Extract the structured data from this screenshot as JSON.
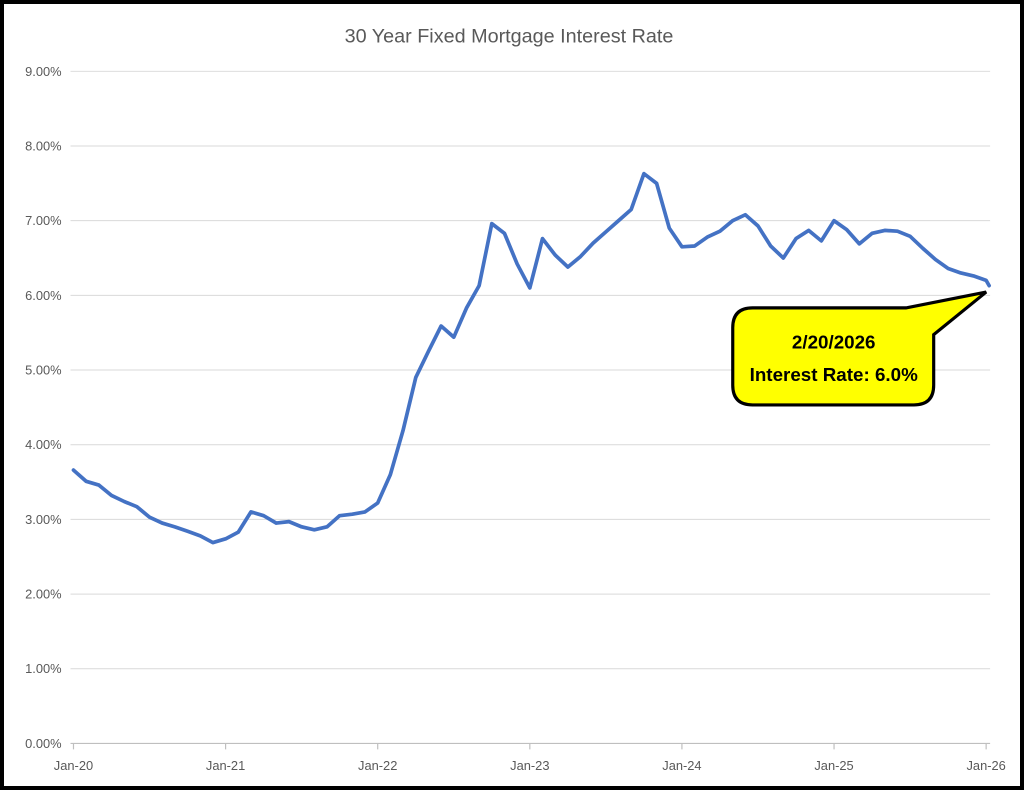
{
  "page": {
    "background": "#ffffff",
    "border_color": "#000000"
  },
  "chart_data": {
    "type": "line",
    "title": "30 Year Fixed Mortgage Interest Rate",
    "x_tick_labels": [
      "Jan-20",
      "Jan-21",
      "Jan-22",
      "Jan-23",
      "Jan-24",
      "Jan-25",
      "Jan-26"
    ],
    "y_tick_labels": [
      "0.00%",
      "1.00%",
      "2.00%",
      "3.00%",
      "4.00%",
      "5.00%",
      "6.00%",
      "7.00%",
      "8.00%",
      "9.00%"
    ],
    "ylim": [
      0,
      9
    ],
    "grid": "horizontal",
    "legend": false,
    "line_color": "#4472C4",
    "gridline_color": "#D9D9D9",
    "axis_color": "#BFBFBF",
    "label_color": "#595959",
    "series": [
      {
        "name": "30 Year Fixed Mortgage Interest Rate",
        "start": "Jan-2020",
        "end": "Feb-2026",
        "frequency": "monthly",
        "unit": "percent",
        "values": [
          3.66,
          3.51,
          3.46,
          3.32,
          3.24,
          3.17,
          3.03,
          2.95,
          2.9,
          2.84,
          2.78,
          2.69,
          2.74,
          2.83,
          3.1,
          3.05,
          2.95,
          2.97,
          2.9,
          2.86,
          2.9,
          3.05,
          3.07,
          3.1,
          3.22,
          3.6,
          4.19,
          4.9,
          5.25,
          5.59,
          5.44,
          5.83,
          6.13,
          6.96,
          6.83,
          6.42,
          6.1,
          6.76,
          6.54,
          6.38,
          6.52,
          6.7,
          6.85,
          7.0,
          7.15,
          7.63,
          7.5,
          6.9,
          6.65,
          6.66,
          6.78,
          6.86,
          7.0,
          7.08,
          6.93,
          6.66,
          6.5,
          6.76,
          6.87,
          6.73,
          7.0,
          6.88,
          6.69,
          6.83,
          6.87,
          6.86,
          6.79,
          6.63,
          6.48,
          6.36,
          6.3,
          6.26,
          6.2,
          6.13
        ]
      }
    ]
  },
  "callout": {
    "date": "2/20/2026",
    "rate_text": "Interest Rate:  6.0%",
    "fill_color": "#FFFF00",
    "border_color": "#000000",
    "text_color": "#000000"
  }
}
